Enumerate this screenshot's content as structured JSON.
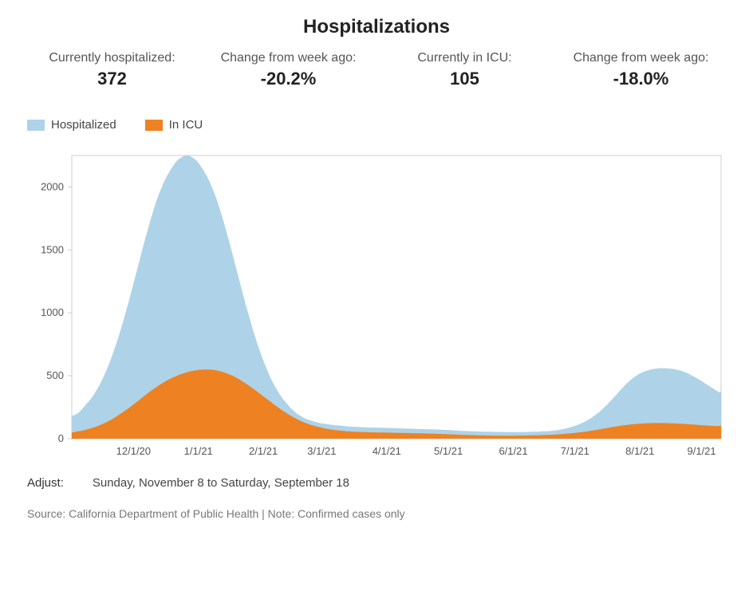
{
  "title": "Hospitalizations",
  "stats": [
    {
      "label": "Currently hospitalized:",
      "value": "372"
    },
    {
      "label": "Change from week ago:",
      "value": "-20.2%"
    },
    {
      "label": "Currently in ICU:",
      "value": "105"
    },
    {
      "label": "Change from week ago:",
      "value": "-18.0%"
    }
  ],
  "legend": [
    {
      "label": "Hospitalized",
      "color": "#aed3e8"
    },
    {
      "label": "In ICU",
      "color": "#ee8122"
    }
  ],
  "chart": {
    "type": "area",
    "background_color": "#ffffff",
    "axis_color": "#cccccc",
    "tick_font_size": 13,
    "tick_color": "#555555",
    "y": {
      "min": 0,
      "max": 2250,
      "ticks": [
        0,
        500,
        1000,
        1500,
        2000
      ]
    },
    "x": {
      "labels": [
        "12/1/20",
        "1/1/21",
        "2/1/21",
        "3/1/21",
        "4/1/21",
        "5/1/21",
        "6/1/21",
        "7/1/21",
        "8/1/21",
        "9/1/21"
      ],
      "label_positions_pct": [
        9.5,
        19.5,
        29.5,
        38.5,
        48.5,
        58.0,
        68.0,
        77.5,
        87.5,
        97.0
      ]
    },
    "series": [
      {
        "name": "hospitalized",
        "color": "#aed3e8",
        "fill_opacity": 1.0,
        "data": [
          180,
          185,
          195,
          205,
          220,
          240,
          260,
          280,
          300,
          320,
          345,
          370,
          400,
          430,
          465,
          500,
          540,
          580,
          625,
          670,
          720,
          770,
          825,
          880,
          940,
          1000,
          1060,
          1125,
          1190,
          1255,
          1320,
          1385,
          1450,
          1515,
          1580,
          1640,
          1700,
          1760,
          1815,
          1870,
          1920,
          1965,
          2005,
          2045,
          2080,
          2110,
          2140,
          2165,
          2190,
          2210,
          2225,
          2235,
          2245,
          2250,
          2250,
          2245,
          2235,
          2225,
          2210,
          2190,
          2165,
          2140,
          2110,
          2080,
          2045,
          2005,
          1965,
          1920,
          1870,
          1815,
          1760,
          1700,
          1640,
          1580,
          1515,
          1450,
          1385,
          1320,
          1255,
          1190,
          1125,
          1060,
          1000,
          940,
          880,
          825,
          770,
          720,
          670,
          625,
          580,
          540,
          500,
          465,
          430,
          400,
          370,
          345,
          320,
          300,
          280,
          260,
          240,
          225,
          210,
          195,
          185,
          175,
          165,
          158,
          150,
          145,
          140,
          135,
          130,
          125,
          122,
          120,
          118,
          115,
          112,
          110,
          108,
          106,
          105,
          103,
          102,
          100,
          98,
          97,
          96,
          95,
          94,
          93,
          92,
          91,
          90,
          90,
          89,
          88,
          88,
          88,
          87,
          87,
          87,
          86,
          86,
          85,
          85,
          84,
          84,
          83,
          83,
          82,
          82,
          81,
          80,
          80,
          79,
          78,
          78,
          77,
          77,
          76,
          76,
          75,
          75,
          74,
          74,
          73,
          73,
          72,
          71,
          70,
          70,
          69,
          68,
          67,
          66,
          65,
          64,
          63,
          62,
          61,
          60,
          60,
          59,
          58,
          58,
          57,
          57,
          56,
          56,
          55,
          55,
          55,
          54,
          54,
          54,
          53,
          53,
          53,
          52,
          52,
          52,
          52,
          52,
          52,
          52,
          53,
          53,
          53,
          54,
          54,
          55,
          55,
          56,
          56,
          57,
          58,
          58,
          59,
          60,
          62,
          64,
          66,
          68,
          71,
          74,
          78,
          82,
          86,
          91,
          96,
          102,
          108,
          115,
          122,
          130,
          139,
          148,
          158,
          169,
          181,
          194,
          208,
          222,
          238,
          254,
          271,
          289,
          307,
          326,
          345,
          364,
          383,
          402,
          420,
          437,
          453,
          468,
          482,
          494,
          505,
          515,
          524,
          532,
          538,
          544,
          548,
          552,
          555,
          557,
          559,
          560,
          560,
          559,
          558,
          557,
          555,
          553,
          550,
          546,
          542,
          536,
          530,
          523,
          515,
          506,
          497,
          488,
          478,
          468,
          457,
          446,
          435,
          424,
          413,
          402,
          391,
          380,
          370,
          372
        ]
      },
      {
        "name": "icu",
        "color": "#ee8122",
        "fill_opacity": 1.0,
        "data": [
          50,
          52,
          55,
          58,
          61,
          65,
          69,
          73,
          78,
          83,
          88,
          94,
          100,
          107,
          114,
          122,
          130,
          139,
          148,
          158,
          168,
          179,
          190,
          201,
          213,
          225,
          237,
          250,
          263,
          276,
          290,
          303,
          317,
          330,
          343,
          356,
          369,
          382,
          394,
          406,
          418,
          429,
          440,
          450,
          460,
          469,
          478,
          486,
          494,
          501,
          508,
          514,
          520,
          525,
          530,
          534,
          538,
          541,
          544,
          546,
          548,
          549,
          550,
          550,
          549,
          548,
          546,
          543,
          540,
          536,
          531,
          526,
          520,
          513,
          506,
          498,
          489,
          480,
          470,
          460,
          449,
          438,
          426,
          414,
          402,
          389,
          377,
          364,
          351,
          338,
          325,
          312,
          299,
          286,
          273,
          260,
          248,
          236,
          224,
          213,
          202,
          191,
          181,
          171,
          162,
          153,
          145,
          137,
          130,
          123,
          117,
          111,
          106,
          101,
          96,
          92,
          88,
          84,
          81,
          78,
          75,
          72,
          70,
          68,
          66,
          64,
          62,
          61,
          59,
          58,
          57,
          56,
          55,
          54,
          53,
          53,
          52,
          52,
          51,
          51,
          50,
          50,
          50,
          49,
          49,
          49,
          48,
          48,
          48,
          47,
          47,
          47,
          46,
          46,
          46,
          45,
          45,
          45,
          44,
          44,
          44,
          43,
          43,
          42,
          42,
          41,
          41,
          40,
          40,
          39,
          38,
          38,
          37,
          36,
          36,
          35,
          34,
          34,
          33,
          32,
          32,
          31,
          30,
          30,
          29,
          29,
          28,
          28,
          27,
          27,
          26,
          26,
          26,
          25,
          25,
          25,
          25,
          24,
          24,
          24,
          24,
          24,
          24,
          24,
          24,
          24,
          24,
          24,
          25,
          25,
          25,
          25,
          26,
          26,
          26,
          27,
          27,
          28,
          28,
          29,
          29,
          30,
          31,
          31,
          32,
          33,
          34,
          35,
          36,
          38,
          39,
          41,
          42,
          44,
          46,
          48,
          50,
          52,
          54,
          57,
          59,
          62,
          64,
          67,
          70,
          73,
          76,
          79,
          82,
          85,
          88,
          91,
          94,
          97,
          100,
          102,
          105,
          107,
          109,
          111,
          113,
          115,
          116,
          118,
          119,
          120,
          121,
          122,
          123,
          123,
          124,
          124,
          124,
          124,
          124,
          124,
          124,
          123,
          123,
          122,
          122,
          121,
          120,
          119,
          118,
          117,
          116,
          115,
          113,
          112,
          111,
          110,
          108,
          107,
          106,
          105,
          104,
          103,
          102,
          101,
          100,
          101,
          105
        ]
      }
    ]
  },
  "adjust": {
    "label": "Adjust:",
    "value": "Sunday, November 8 to Saturday, September 18"
  },
  "source": "Source: California Department of Public Health | Note: Confirmed cases only"
}
